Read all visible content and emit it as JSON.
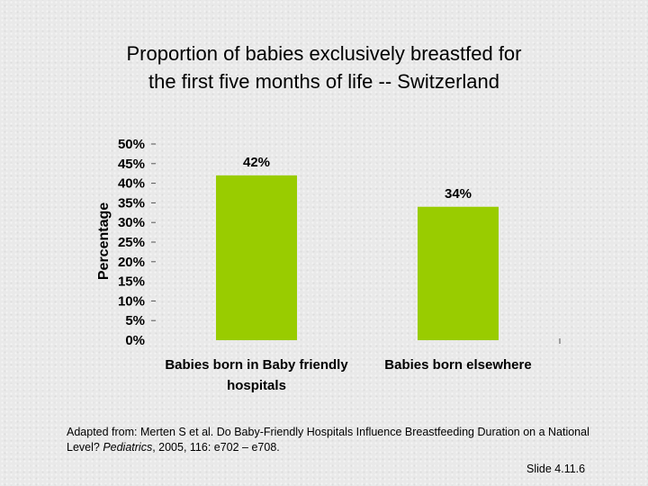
{
  "slide": {
    "title_line1": "Proportion of babies exclusively breastfed for",
    "title_line2": "the first five months of life -- Switzerland",
    "citation_part1": "Adapted from: Merten S et al. Do Baby-Friendly Hospitals Influence Breastfeeding Duration on a National Level? ",
    "citation_journal": "Pediatrics",
    "citation_part2": ", 2005, 116: e702 – e708.",
    "slide_number": "Slide 4.11.6"
  },
  "chart_data": {
    "type": "bar",
    "title": "Proportion of babies exclusively breastfed for the first five months of life -- Switzerland",
    "ylabel": "Percentage",
    "xlabel": "",
    "categories": [
      "Babies born in Baby friendly hospitals",
      "Babies born elsewhere"
    ],
    "category_lines": [
      [
        "Babies born in Baby friendly",
        "hospitals"
      ],
      [
        "Babies born elsewhere"
      ]
    ],
    "values": [
      42,
      34
    ],
    "data_labels": [
      "42%",
      "34%"
    ],
    "ylim": [
      0,
      50
    ],
    "yticks": [
      0,
      5,
      10,
      15,
      20,
      25,
      30,
      35,
      40,
      45,
      50
    ],
    "ytick_labels": [
      "0%",
      "5%",
      "10%",
      "15%",
      "20%",
      "25%",
      "30%",
      "35%",
      "40%",
      "45%",
      "50%"
    ],
    "bar_color": "#99cc00",
    "grid": false,
    "legend": "none"
  }
}
